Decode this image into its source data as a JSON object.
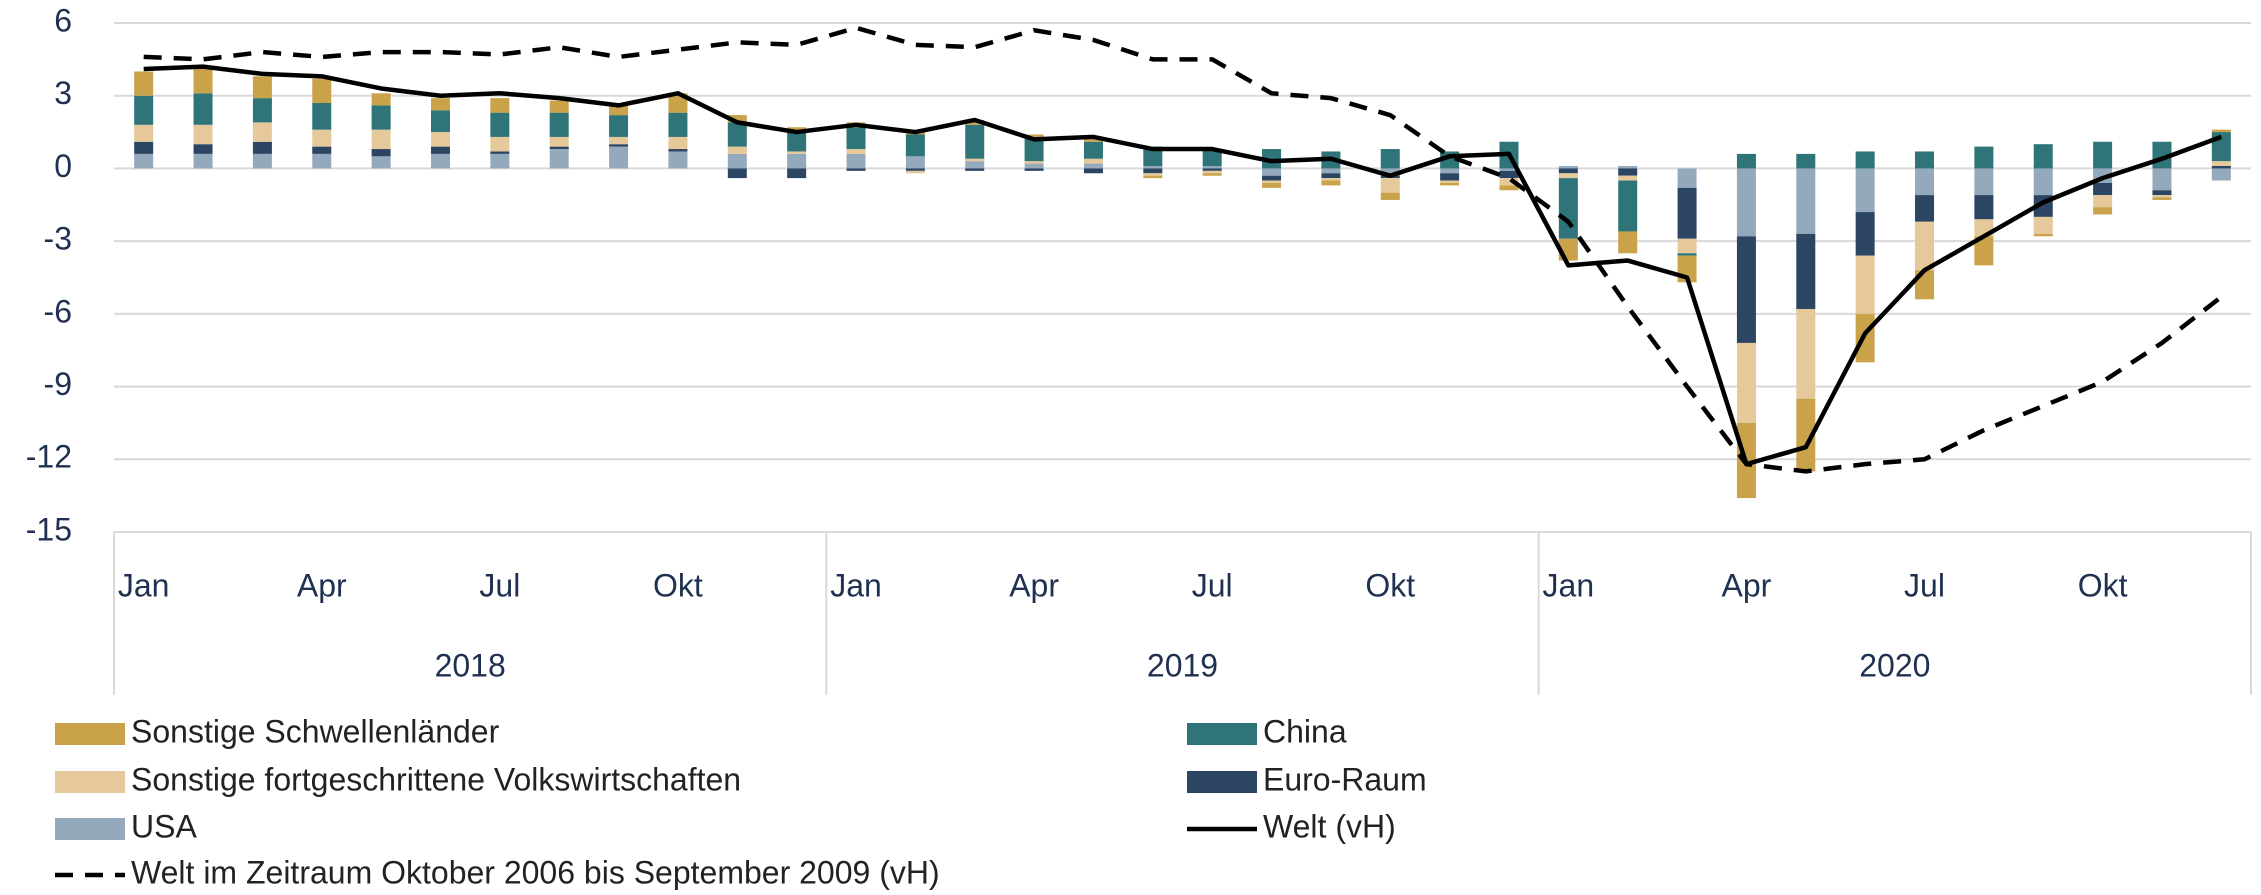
{
  "chart_data": {
    "type": "bar",
    "categories": [
      "Jan",
      null,
      null,
      "Apr",
      null,
      null,
      "Jul",
      null,
      null,
      "Okt",
      null,
      null,
      "Jan",
      null,
      null,
      "Apr",
      null,
      null,
      "Jul",
      null,
      null,
      "Okt",
      null,
      null,
      "Jan",
      null,
      null,
      "Apr",
      null,
      null,
      "Jul",
      null,
      null,
      "Okt",
      null,
      null
    ],
    "year_groups": [
      "2018",
      "2019",
      "2020"
    ],
    "ylim": [
      -15,
      6
    ],
    "yticks": [
      -15,
      -12,
      -9,
      -6,
      -3,
      0,
      3,
      6
    ],
    "grid": true,
    "series": [
      {
        "name": "USA",
        "color": "#95a9bd",
        "type": "bar",
        "values": [
          0.6,
          0.6,
          0.6,
          0.6,
          0.5,
          0.6,
          0.6,
          0.8,
          0.9,
          0.7,
          0.6,
          0.6,
          0.6,
          0.5,
          0.3,
          0.2,
          0.2,
          0.1,
          0.1,
          -0.3,
          -0.2,
          -0.3,
          -0.2,
          -0.1,
          0.1,
          0.1,
          -0.8,
          -2.8,
          -2.7,
          -1.8,
          -1.1,
          -1.1,
          -1.1,
          -0.6,
          -0.9,
          -0.5
        ]
      },
      {
        "name": "Euro-Raum",
        "color": "#2c4563",
        "type": "bar",
        "values": [
          0.5,
          0.4,
          0.5,
          0.3,
          0.3,
          0.3,
          0.1,
          0.1,
          0.1,
          0.1,
          -0.4,
          -0.4,
          -0.1,
          -0.1,
          -0.1,
          -0.1,
          -0.2,
          -0.2,
          -0.1,
          -0.2,
          -0.2,
          -0.1,
          -0.3,
          -0.3,
          -0.2,
          -0.3,
          -2.1,
          -4.4,
          -3.1,
          -1.8,
          -1.1,
          -1.0,
          -0.9,
          -0.5,
          -0.2,
          0.1
        ]
      },
      {
        "name": "Sonstige fortgeschrittene Volkswirtschaften",
        "color": "#e6c99a",
        "type": "bar",
        "values": [
          0.7,
          0.8,
          0.8,
          0.7,
          0.8,
          0.6,
          0.6,
          0.4,
          0.3,
          0.5,
          0.3,
          0.1,
          0.2,
          -0.1,
          0.1,
          0.1,
          0.2,
          -0.1,
          -0.1,
          -0.1,
          -0.1,
          -0.6,
          -0.1,
          -0.3,
          -0.2,
          -0.2,
          -0.6,
          -3.3,
          -3.7,
          -2.4,
          -2.0,
          -0.7,
          -0.7,
          -0.5,
          -0.1,
          0.2
        ]
      },
      {
        "name": "China",
        "color": "#2e7478",
        "type": "bar",
        "values": [
          1.2,
          1.3,
          1.0,
          1.1,
          1.0,
          0.9,
          1.0,
          1.0,
          0.9,
          1.0,
          1.0,
          0.8,
          0.9,
          0.9,
          1.4,
          1.0,
          0.7,
          0.8,
          0.7,
          0.8,
          0.7,
          0.8,
          0.7,
          1.1,
          -2.5,
          -2.1,
          -0.1,
          0.6,
          0.6,
          0.7,
          0.7,
          0.9,
          1.0,
          1.1,
          1.1,
          1.2
        ]
      },
      {
        "name": "Sonstige Schwellenländer",
        "color": "#c9a24a",
        "type": "bar",
        "values": [
          1.0,
          1.0,
          0.9,
          1.0,
          0.5,
          0.5,
          0.6,
          0.5,
          0.4,
          0.8,
          0.3,
          0.2,
          0.2,
          0.2,
          0.2,
          0.1,
          0.1,
          -0.1,
          -0.1,
          -0.2,
          -0.2,
          -0.3,
          -0.1,
          -0.2,
          -0.9,
          -0.9,
          -1.1,
          -3.1,
          -3.0,
          -2.0,
          -1.2,
          -1.2,
          -0.1,
          -0.3,
          -0.1,
          0.1
        ]
      },
      {
        "name": "Welt (vH)",
        "color": "#000000",
        "type": "line",
        "dashed": false,
        "values": [
          4.1,
          4.2,
          3.9,
          3.8,
          3.3,
          3.0,
          3.1,
          2.9,
          2.6,
          3.1,
          1.9,
          1.5,
          1.8,
          1.5,
          2.0,
          1.2,
          1.3,
          0.8,
          0.8,
          0.3,
          0.4,
          -0.3,
          0.5,
          0.6,
          -4.0,
          -3.8,
          -4.5,
          -12.2,
          -11.5,
          -6.8,
          -4.2,
          -2.8,
          -1.4,
          -0.4,
          0.4,
          1.3
        ]
      },
      {
        "name": "Welt im Zeitraum Oktober 2006 bis September 2009 (vH)",
        "color": "#000000",
        "type": "line",
        "dashed": true,
        "values": [
          4.6,
          4.5,
          4.8,
          4.6,
          4.8,
          4.8,
          4.7,
          5.0,
          4.6,
          4.9,
          5.2,
          5.1,
          5.8,
          5.1,
          5.0,
          5.7,
          5.3,
          4.5,
          4.5,
          3.1,
          2.9,
          2.2,
          0.5,
          -0.4,
          -2.2,
          -5.7,
          -9.0,
          -12.2,
          -12.5,
          -12.2,
          -12.0,
          -10.8,
          -9.8,
          -8.8,
          -7.2,
          -5.3
        ]
      }
    ],
    "legend_order": [
      4,
      3,
      2,
      1,
      0,
      5,
      6
    ]
  }
}
